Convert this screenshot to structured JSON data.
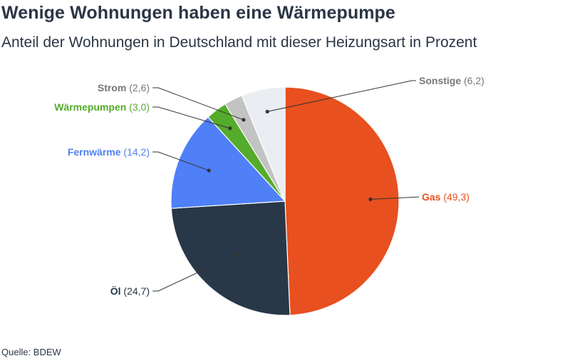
{
  "title": "Wenige Wohnungen haben eine Wärmepumpe",
  "subtitle": "Anteil der Wohnungen in Deutschland mit dieser Heizungsart in Prozent",
  "source": "Quelle: BDEW",
  "colors": {
    "Gas": "#e8501f",
    "Öl": "#283848",
    "Fernwärme": "#4f80f7",
    "Wärmepumpen": "#55ab2b",
    "Strom": "#c3c3c3",
    "Sonstige": "#eaeef2",
    "label_text_light": "#777777",
    "connector": "#333333"
  },
  "chart_data": {
    "type": "pie",
    "start_angle_deg": 0,
    "direction": "clockwise",
    "slices": [
      {
        "name": "Gas",
        "value": 49.3,
        "value_label": "(49,3)"
      },
      {
        "name": "Öl",
        "value": 24.7,
        "value_label": "(24,7)"
      },
      {
        "name": "Fernwärme",
        "value": 14.2,
        "value_label": "(14,2)"
      },
      {
        "name": "Wärmepumpen",
        "value": 3.0,
        "value_label": "(3,0)"
      },
      {
        "name": "Strom",
        "value": 2.6,
        "value_label": "(2,6)"
      },
      {
        "name": "Sonstige",
        "value": 6.2,
        "value_label": "(6,2)"
      }
    ]
  }
}
